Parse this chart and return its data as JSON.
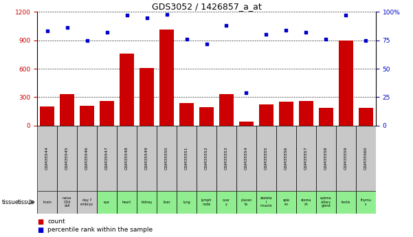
{
  "title": "GDS3052 / 1426857_a_at",
  "gsm_labels": [
    "GSM35544",
    "GSM35545",
    "GSM35546",
    "GSM35547",
    "GSM35548",
    "GSM35549",
    "GSM35550",
    "GSM35551",
    "GSM35552",
    "GSM35553",
    "GSM35554",
    "GSM35555",
    "GSM35556",
    "GSM35557",
    "GSM35558",
    "GSM35559",
    "GSM35560"
  ],
  "tissue_labels": [
    "brain",
    "naive\nCD4\ncell",
    "day 7\nembryо",
    "eye",
    "heart",
    "kidney",
    "liver",
    "lung",
    "lymph\nnode",
    "ovar\ny",
    "placen\nta",
    "skeleta\nl\nmuscle",
    "sple\nen",
    "stoma\nch",
    "subma\nxillary\ngland",
    "testis",
    "thymu\ns"
  ],
  "tissue_colors": [
    "#c8c8c8",
    "#c8c8c8",
    "#c8c8c8",
    "#90ee90",
    "#90ee90",
    "#90ee90",
    "#90ee90",
    "#90ee90",
    "#90ee90",
    "#90ee90",
    "#90ee90",
    "#90ee90",
    "#90ee90",
    "#90ee90",
    "#90ee90",
    "#90ee90",
    "#90ee90"
  ],
  "counts": [
    200,
    330,
    210,
    260,
    760,
    610,
    1010,
    240,
    195,
    330,
    40,
    225,
    255,
    260,
    185,
    900,
    190
  ],
  "percentiles": [
    83,
    86,
    75,
    82,
    97,
    95,
    98,
    76,
    72,
    88,
    29,
    80,
    84,
    82,
    76,
    97,
    75
  ],
  "left_ylim": [
    0,
    1200
  ],
  "right_ylim": [
    0,
    100
  ],
  "left_yticks": [
    0,
    300,
    600,
    900,
    1200
  ],
  "right_yticks": [
    0,
    25,
    50,
    75,
    100
  ],
  "bar_color": "#cc0000",
  "dot_color": "#0000cc",
  "grid_color": "#000000",
  "bg_color": "#ffffff",
  "title_fontsize": 9,
  "gsm_row_color": "#c8c8c8",
  "legend_red_label": "count",
  "legend_blue_label": "percentile rank within the sample"
}
